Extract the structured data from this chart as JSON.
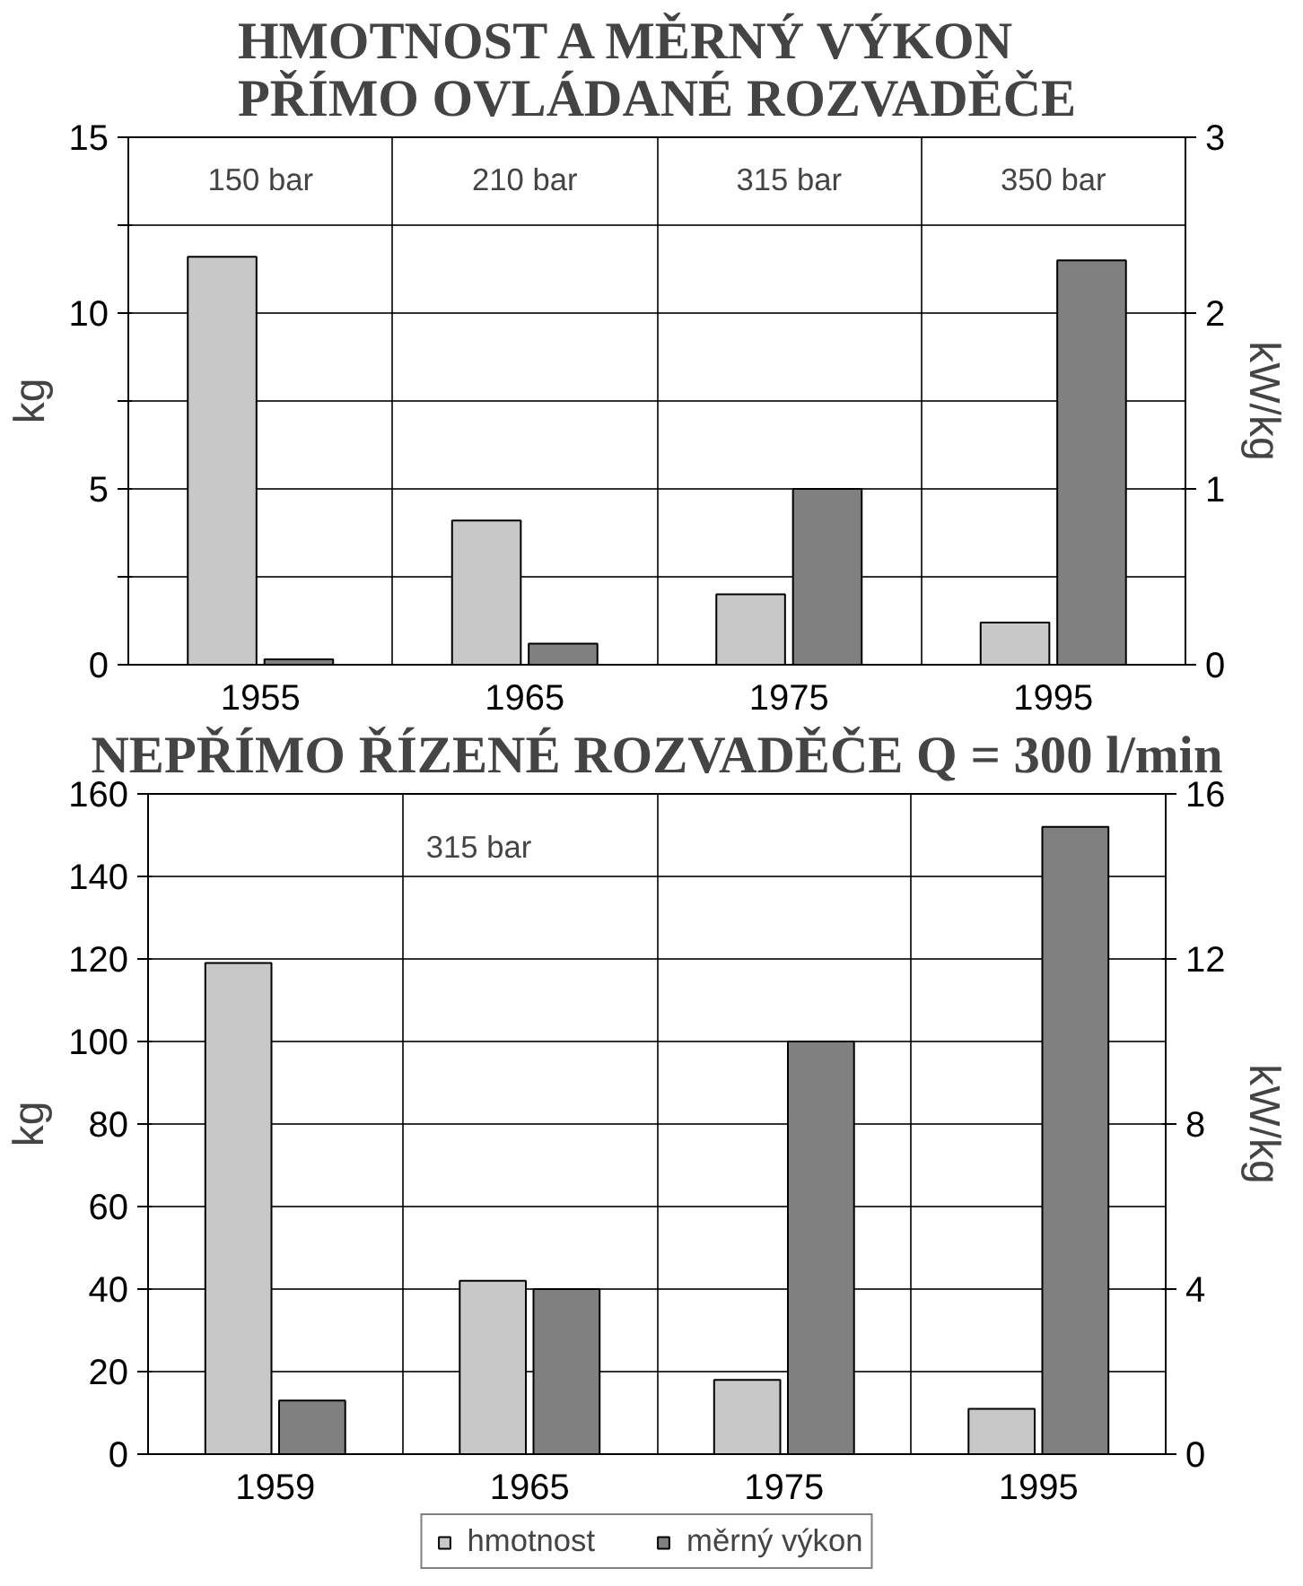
{
  "chart_data": [
    {
      "type": "bar",
      "title": "HMOTNOST A MĚRNÝ VÝKON\nPŘÍMO OVLÁDANÉ ROZVADĚČE",
      "categories": [
        "1955",
        "1965",
        "1975",
        "1995"
      ],
      "series": [
        {
          "color": "#c8c8c8",
          "values": [
            11.6,
            4.1,
            2.0,
            1.2
          ]
        },
        {
          "color": "#808080",
          "axis": "y2",
          "values": [
            0.03,
            0.12,
            1.0,
            2.3
          ]
        }
      ],
      "ylabel": "kg",
      "y2label": "kW/kg",
      "ylim": [
        0,
        15
      ],
      "yticks": [
        0,
        {
          "value": 2.5,
          "label": null
        },
        5,
        {
          "value": 7.5,
          "label": null
        },
        10,
        {
          "value": 12.5,
          "label": null
        },
        15
      ],
      "y2lim": [
        0,
        3
      ],
      "y2ticks": [
        0,
        1,
        2,
        3
      ],
      "grid": true,
      "legend": false,
      "annotations": [
        "150 bar",
        "210 bar",
        "315 bar",
        "350 bar"
      ]
    },
    {
      "type": "bar",
      "title": "NEPŘÍMO ŘÍZENÉ ROZVADĚČE Q = 300 l/min",
      "categories": [
        "1959",
        "1965",
        "1975",
        "1995"
      ],
      "series": [
        {
          "name": "hmotnost",
          "color": "#c8c8c8",
          "values": [
            119,
            42,
            18,
            11
          ]
        },
        {
          "name": "měrný výkon",
          "color": "#808080",
          "axis": "y2",
          "values": [
            1.3,
            4.0,
            10.0,
            15.2
          ]
        }
      ],
      "ylabel": "kg",
      "y2label": "kW/kg",
      "ylim": [
        0,
        160
      ],
      "yticks": [
        0,
        20,
        40,
        60,
        80,
        100,
        120,
        140,
        160
      ],
      "y2lim": [
        0,
        16
      ],
      "y2ticks": [
        0,
        4,
        8,
        12,
        16
      ],
      "grid": true,
      "legend": "bottom",
      "annotations": [
        "315 bar"
      ]
    }
  ]
}
